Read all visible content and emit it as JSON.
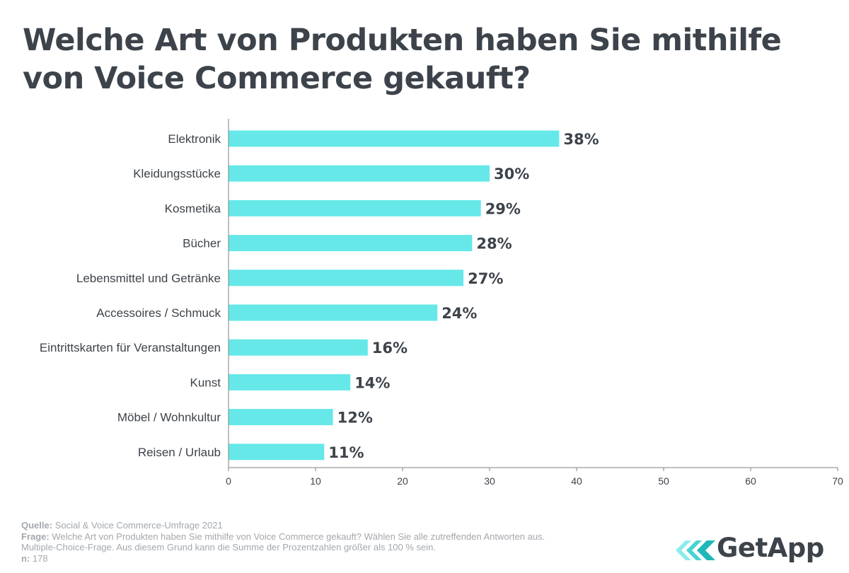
{
  "header": {
    "title_line1": "Welche Art von Produkten haben Sie mithilfe",
    "title_line2": "von Voice Commerce gekauft?"
  },
  "chart_data": {
    "type": "bar",
    "orientation": "horizontal",
    "title": "Welche Art von Produkten haben Sie mithilfe von Voice Commerce gekauft?",
    "categories": [
      "Elektronik",
      "Kleidungsstücke",
      "Kosmetika",
      "Bücher",
      "Lebensmittel und Getränke",
      "Accessoires / Schmuck",
      "Eintrittskarten für Veranstaltungen",
      "Kunst",
      "Möbel / Wohnkultur",
      "Reisen / Urlaub"
    ],
    "values": [
      38,
      30,
      29,
      28,
      27,
      24,
      16,
      14,
      12,
      11
    ],
    "value_labels": [
      "38%",
      "30%",
      "29%",
      "28%",
      "27%",
      "24%",
      "16%",
      "14%",
      "12%",
      "11%"
    ],
    "xlim": [
      0,
      70
    ],
    "xticks": [
      0,
      10,
      20,
      30,
      40,
      50,
      60,
      70
    ],
    "grid": false,
    "legend": "none",
    "bar_color": "#66e8e8",
    "label_color": "#3d434a",
    "tick_color": "#3d434a"
  },
  "footer": {
    "source_key": "Quelle:",
    "source_value": "Social & Voice Commerce-Umfrage 2021",
    "question_key": "Frage:",
    "question_value": "Welche Art von Produkten haben Sie mithilfe von Voice Commerce gekauft? Wählen Sie alle zutreffenden Antworten aus.",
    "note": "Multiple-Choice-Frage. Aus diesem Grund kann die Summe der Prozentzahlen größer als 100 % sein.",
    "n_key": "n:",
    "n_value": "178"
  },
  "logo": {
    "text": "GetApp",
    "icon": "getapp-chevrons-icon",
    "colors": [
      "#8cecec",
      "#46d4d4",
      "#1fb8b8"
    ]
  }
}
